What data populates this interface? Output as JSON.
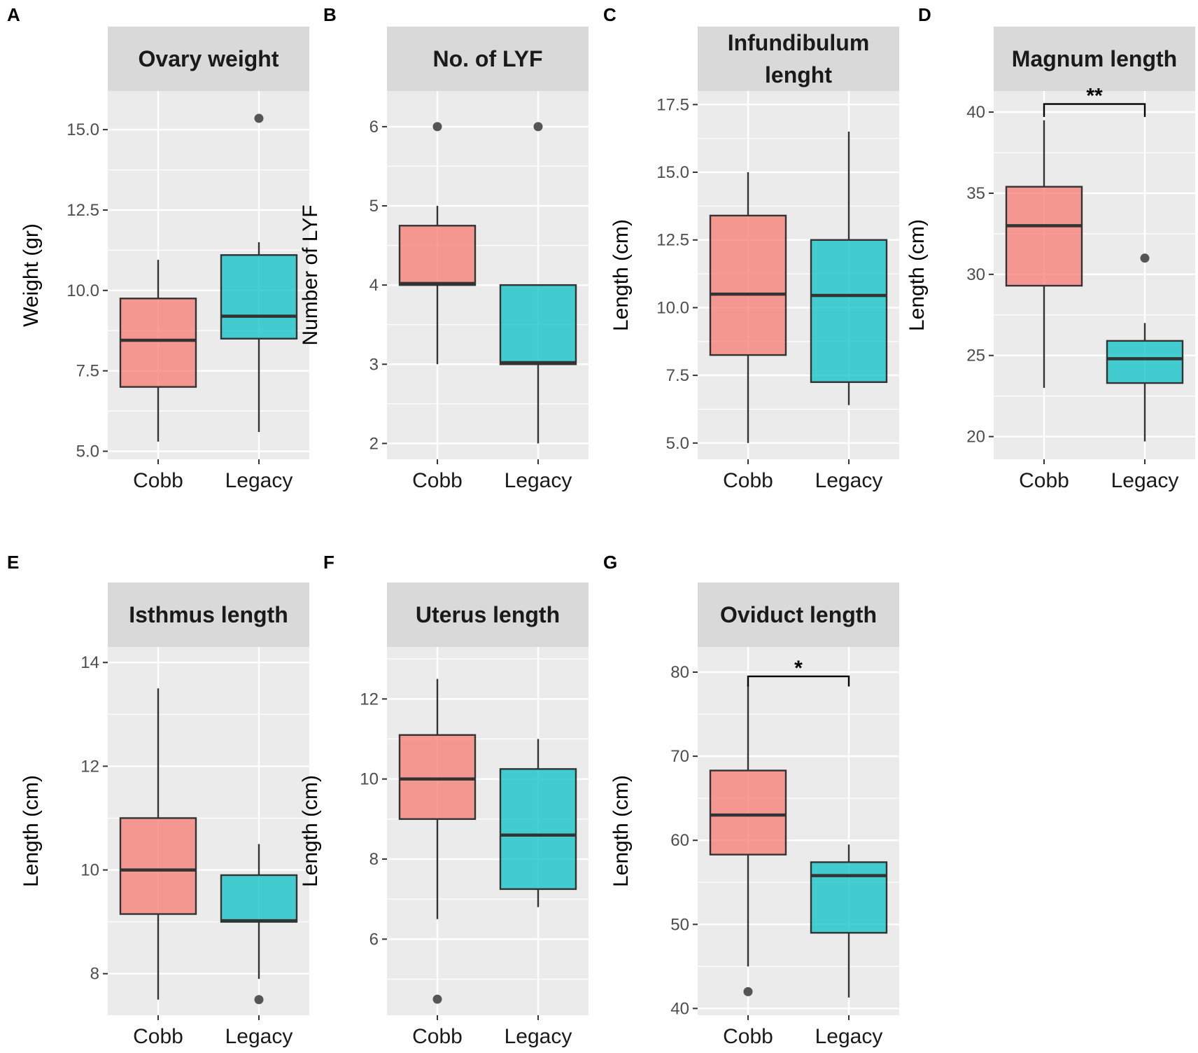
{
  "colors": {
    "cobb": "#F8766D",
    "legacy": "#00BFC4",
    "panel_bg": "#EBEBEB",
    "strip_bg": "#D9D9D9",
    "grid": "#FFFFFF",
    "line": "#333333",
    "outlier": "#555555"
  },
  "chart_data": [
    {
      "id": "A",
      "letter": "A",
      "type": "box",
      "title": "Ovary weight",
      "ylabel": "Weight (gr)",
      "ylim": [
        4.75,
        16.2
      ],
      "yticks": [
        5.0,
        7.5,
        10.0,
        12.5,
        15.0
      ],
      "ytick_labels": [
        "5.0",
        "7.5",
        "10.0",
        "12.5",
        "15.0"
      ],
      "categories": [
        "Cobb",
        "Legacy"
      ],
      "boxes": [
        {
          "group": "Cobb",
          "min": 5.3,
          "q1": 7.0,
          "median": 8.45,
          "q3": 9.75,
          "max": 10.95,
          "outliers": []
        },
        {
          "group": "Legacy",
          "min": 5.6,
          "q1": 8.5,
          "median": 9.2,
          "q3": 11.1,
          "max": 11.5,
          "outliers": [
            15.35
          ]
        }
      ],
      "significance": null
    },
    {
      "id": "B",
      "letter": "B",
      "type": "box",
      "title": "No. of LYF",
      "ylabel": "Number of LYF",
      "ylim": [
        1.8,
        6.45
      ],
      "yticks": [
        2,
        3,
        4,
        5,
        6
      ],
      "ytick_labels": [
        "2",
        "3",
        "4",
        "5",
        "6"
      ],
      "categories": [
        "Cobb",
        "Legacy"
      ],
      "boxes": [
        {
          "group": "Cobb",
          "min": 3.0,
          "q1": 4.0,
          "median": 4.02,
          "q3": 4.75,
          "max": 5.0,
          "outliers": [
            6
          ]
        },
        {
          "group": "Legacy",
          "min": 2.0,
          "q1": 3.0,
          "median": 3.02,
          "q3": 4.0,
          "max": 4.0,
          "outliers": [
            6
          ]
        }
      ],
      "significance": null
    },
    {
      "id": "C",
      "letter": "C",
      "type": "box",
      "title": "Infundibulum lenght",
      "title_lines": [
        "Infundibulum",
        "lenght"
      ],
      "ylabel": "Length (cm)",
      "ylim": [
        4.4,
        18.0
      ],
      "yticks": [
        5.0,
        7.5,
        10.0,
        12.5,
        15.0,
        17.5
      ],
      "ytick_labels": [
        "5.0",
        "7.5",
        "10.0",
        "12.5",
        "15.0",
        "17.5"
      ],
      "categories": [
        "Cobb",
        "Legacy"
      ],
      "boxes": [
        {
          "group": "Cobb",
          "min": 5.0,
          "q1": 8.25,
          "median": 10.5,
          "q3": 13.4,
          "max": 15.0,
          "outliers": []
        },
        {
          "group": "Legacy",
          "min": 6.4,
          "q1": 7.25,
          "median": 10.45,
          "q3": 12.5,
          "max": 16.5,
          "outliers": []
        }
      ],
      "significance": null
    },
    {
      "id": "D",
      "letter": "D",
      "type": "box",
      "title": "Magnum length",
      "ylabel": "Length (cm)",
      "ylim": [
        18.6,
        41.3
      ],
      "yticks": [
        20,
        25,
        30,
        35,
        40
      ],
      "ytick_labels": [
        "20",
        "25",
        "30",
        "35",
        "40"
      ],
      "categories": [
        "Cobb",
        "Legacy"
      ],
      "boxes": [
        {
          "group": "Cobb",
          "min": 23.0,
          "q1": 29.3,
          "median": 33.0,
          "q3": 35.4,
          "max": 39.5,
          "outliers": []
        },
        {
          "group": "Legacy",
          "min": 19.7,
          "q1": 23.3,
          "median": 24.8,
          "q3": 25.9,
          "max": 27.0,
          "outliers": [
            31.0
          ]
        }
      ],
      "significance": {
        "label": "**",
        "y": 40.5,
        "drop": 0.8
      }
    },
    {
      "id": "E",
      "letter": "E",
      "type": "box",
      "title": "Isthmus length",
      "ylabel": "Length (cm)",
      "ylim": [
        7.2,
        14.3
      ],
      "yticks": [
        8,
        10,
        12,
        14
      ],
      "ytick_labels": [
        "8",
        "10",
        "12",
        "14"
      ],
      "categories": [
        "Cobb",
        "Legacy"
      ],
      "boxes": [
        {
          "group": "Cobb",
          "min": 7.5,
          "q1": 9.15,
          "median": 10.0,
          "q3": 11.0,
          "max": 13.5,
          "outliers": []
        },
        {
          "group": "Legacy",
          "min": 7.9,
          "q1": 9.0,
          "median": 9.02,
          "q3": 9.9,
          "max": 10.5,
          "outliers": [
            7.5
          ]
        }
      ],
      "significance": null
    },
    {
      "id": "F",
      "letter": "F",
      "type": "box",
      "title": "Uterus length",
      "ylabel": "Length (cm)",
      "ylim": [
        4.1,
        13.3
      ],
      "yticks": [
        6,
        8,
        10,
        12
      ],
      "ytick_labels": [
        "6",
        "8",
        "10",
        "12"
      ],
      "categories": [
        "Cobb",
        "Legacy"
      ],
      "boxes": [
        {
          "group": "Cobb",
          "min": 6.5,
          "q1": 9.0,
          "median": 10.0,
          "q3": 11.1,
          "max": 12.5,
          "outliers": [
            4.5
          ]
        },
        {
          "group": "Legacy",
          "min": 6.8,
          "q1": 7.25,
          "median": 8.6,
          "q3": 10.25,
          "max": 11.0,
          "outliers": []
        }
      ],
      "significance": null
    },
    {
      "id": "G",
      "letter": "G",
      "type": "box",
      "title": "Oviduct length",
      "ylabel": "Length (cm)",
      "ylim": [
        39.2,
        83.0
      ],
      "yticks": [
        40,
        50,
        60,
        70,
        80
      ],
      "ytick_labels": [
        "40",
        "50",
        "60",
        "70",
        "80"
      ],
      "categories": [
        "Cobb",
        "Legacy"
      ],
      "boxes": [
        {
          "group": "Cobb",
          "min": 45.0,
          "q1": 58.3,
          "median": 63.0,
          "q3": 68.3,
          "max": 78.5,
          "outliers": [
            42.0
          ]
        },
        {
          "group": "Legacy",
          "min": 41.3,
          "q1": 49.0,
          "median": 55.8,
          "q3": 57.4,
          "max": 59.5,
          "outliers": []
        }
      ],
      "significance": {
        "label": "*",
        "y": 79.5,
        "drop": 1.2
      }
    }
  ]
}
